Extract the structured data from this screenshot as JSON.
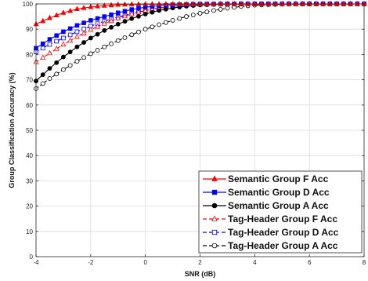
{
  "chart_data": {
    "type": "line",
    "xlabel": "SNR (dB)",
    "ylabel": "Group Classification Accuracy (%)",
    "xlim": [
      -4,
      8
    ],
    "ylim": [
      0,
      100
    ],
    "xticks": [
      -4,
      -2,
      0,
      2,
      4,
      6,
      8
    ],
    "yticks": [
      0,
      10,
      20,
      30,
      40,
      50,
      60,
      70,
      80,
      90,
      100
    ],
    "grid": true,
    "legend_position": "bottom-right",
    "x_step": 0.25,
    "series": [
      {
        "name": "Semantic Group F Acc",
        "color": "#ff0000",
        "linestyle": "solid",
        "marker": "triangle",
        "filled": true,
        "anchors": [
          [
            -4,
            92
          ],
          [
            -3.5,
            94.5
          ],
          [
            -3,
            96.5
          ],
          [
            -2.5,
            98
          ],
          [
            -2,
            98.8
          ],
          [
            -1.5,
            99.3
          ],
          [
            -1,
            99.7
          ],
          [
            0,
            99.9
          ],
          [
            8,
            100
          ]
        ]
      },
      {
        "name": "Semantic Group D Acc",
        "color": "#0000ff",
        "linestyle": "solid",
        "marker": "square",
        "filled": true,
        "anchors": [
          [
            -4,
            82.5
          ],
          [
            -3.5,
            86
          ],
          [
            -3,
            89
          ],
          [
            -2.5,
            91.5
          ],
          [
            -2,
            93.5
          ],
          [
            -1.5,
            95
          ],
          [
            -1,
            96.5
          ],
          [
            -0.5,
            97.8
          ],
          [
            0,
            98.7
          ],
          [
            0.5,
            99.3
          ],
          [
            1,
            99.7
          ],
          [
            2,
            99.95
          ],
          [
            8,
            100
          ]
        ]
      },
      {
        "name": "Semantic Group A Acc",
        "color": "#000000",
        "linestyle": "solid",
        "marker": "circle",
        "filled": true,
        "anchors": [
          [
            -4,
            69.5
          ],
          [
            -3.5,
            74.5
          ],
          [
            -3,
            79
          ],
          [
            -2.5,
            83
          ],
          [
            -2,
            86.5
          ],
          [
            -1.5,
            89.5
          ],
          [
            -1,
            92
          ],
          [
            -0.5,
            94.2
          ],
          [
            0,
            96
          ],
          [
            0.5,
            97.4
          ],
          [
            1,
            98.4
          ],
          [
            1.5,
            99.1
          ],
          [
            2,
            99.6
          ],
          [
            3,
            99.95
          ],
          [
            8,
            100
          ]
        ]
      },
      {
        "name": "Tag-Header Group F Acc",
        "color": "#ff0000",
        "linestyle": "dashed",
        "marker": "triangle",
        "filled": false,
        "anchors": [
          [
            -4,
            77
          ],
          [
            -3.5,
            80.5
          ],
          [
            -3,
            84
          ],
          [
            -2.5,
            87
          ],
          [
            -2,
            89.8
          ],
          [
            -1.5,
            92.2
          ],
          [
            -1,
            94.3
          ],
          [
            -0.5,
            96
          ],
          [
            0,
            97.3
          ],
          [
            0.5,
            98.3
          ],
          [
            1,
            99
          ],
          [
            1.5,
            99.5
          ],
          [
            2,
            99.8
          ],
          [
            3,
            100
          ],
          [
            8,
            100
          ]
        ]
      },
      {
        "name": "Tag-Header Group D Acc",
        "color": "#0000ff",
        "linestyle": "dashed",
        "marker": "square",
        "filled": false,
        "anchors": [
          [
            -4,
            81
          ],
          [
            -3.5,
            84
          ],
          [
            -3,
            86.5
          ],
          [
            -2.5,
            89
          ],
          [
            -2,
            91.2
          ],
          [
            -1.5,
            93.2
          ],
          [
            -1,
            94.8
          ],
          [
            -0.5,
            96.2
          ],
          [
            0,
            97.4
          ],
          [
            0.5,
            98.4
          ],
          [
            1,
            99.1
          ],
          [
            1.5,
            99.5
          ],
          [
            2,
            99.8
          ],
          [
            3,
            100
          ],
          [
            8,
            100
          ]
        ]
      },
      {
        "name": "Tag-Header Group A Acc",
        "color": "#000000",
        "linestyle": "dashed",
        "marker": "circle",
        "filled": false,
        "anchors": [
          [
            -4,
            66.5
          ],
          [
            -3.5,
            70.5
          ],
          [
            -3,
            74
          ],
          [
            -2.5,
            77.3
          ],
          [
            -2,
            80.3
          ],
          [
            -1.5,
            83
          ],
          [
            -1,
            85.5
          ],
          [
            -0.5,
            87.8
          ],
          [
            0,
            90
          ],
          [
            0.5,
            91.8
          ],
          [
            1,
            93.5
          ],
          [
            1.5,
            95
          ],
          [
            2,
            96.3
          ],
          [
            2.5,
            97.4
          ],
          [
            3,
            98.3
          ],
          [
            3.5,
            99
          ],
          [
            4,
            99.5
          ],
          [
            5,
            99.9
          ],
          [
            6,
            100
          ],
          [
            8,
            100
          ]
        ]
      }
    ]
  }
}
